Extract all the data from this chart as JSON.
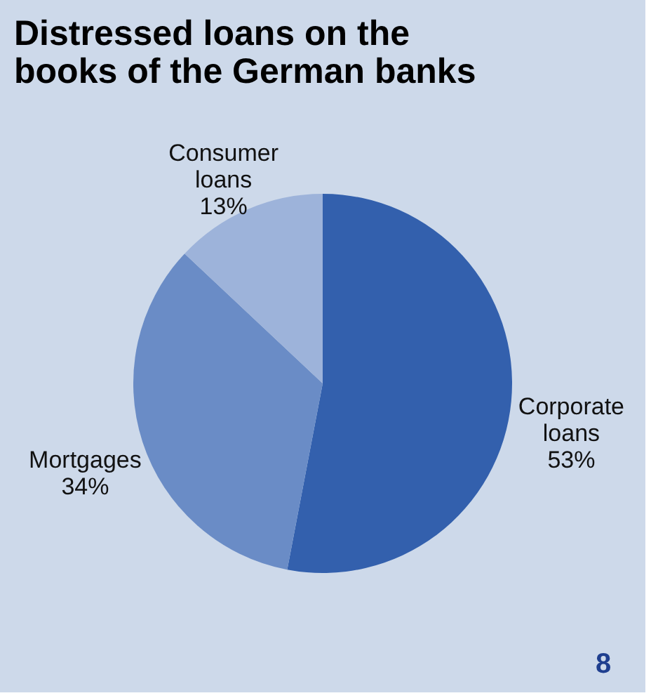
{
  "chart_data": {
    "type": "pie",
    "title": "Distressed loans on the\nbooks of the German banks",
    "categories": [
      "Corporate loans",
      "Mortgages",
      "Consumer loans"
    ],
    "values": [
      53,
      34,
      13
    ],
    "colors": [
      "#3360ad",
      "#6a8cc6",
      "#9db3da"
    ],
    "value_labels": [
      "53%",
      "34%",
      "13%"
    ],
    "legend": false,
    "annotations": [
      "8"
    ]
  }
}
